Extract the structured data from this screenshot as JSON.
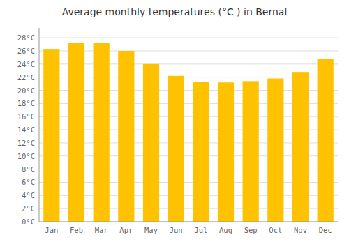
{
  "chart_data": {
    "type": "bar",
    "title": "Average monthly temperatures (°C ) in Bernal",
    "categories": [
      "Jan",
      "Feb",
      "Mar",
      "Apr",
      "May",
      "Jun",
      "Jul",
      "Aug",
      "Sep",
      "Oct",
      "Nov",
      "Dec"
    ],
    "values": [
      26.2,
      27.2,
      27.2,
      26.0,
      24.0,
      22.2,
      21.3,
      21.2,
      21.4,
      21.8,
      22.8,
      24.8
    ],
    "color": "#FFC200",
    "ylim": [
      0,
      29.5
    ],
    "yticks": [
      {
        "value": 0,
        "label": "0°C"
      },
      {
        "value": 2,
        "label": "2°C"
      },
      {
        "value": 4,
        "label": "4°C"
      },
      {
        "value": 6,
        "label": "6°C"
      },
      {
        "value": 8,
        "label": "8°C"
      },
      {
        "value": 10,
        "label": "10°C"
      },
      {
        "value": 12,
        "label": "12°C"
      },
      {
        "value": 14,
        "label": "14°C"
      },
      {
        "value": 16,
        "label": "16°C"
      },
      {
        "value": 18,
        "label": "18°C"
      },
      {
        "value": 20,
        "label": "20°C"
      },
      {
        "value": 22,
        "label": "22°C"
      },
      {
        "value": 24,
        "label": "24°C"
      },
      {
        "value": 26,
        "label": "26°C"
      },
      {
        "value": 28,
        "label": "28°C"
      }
    ],
    "grid": true
  }
}
